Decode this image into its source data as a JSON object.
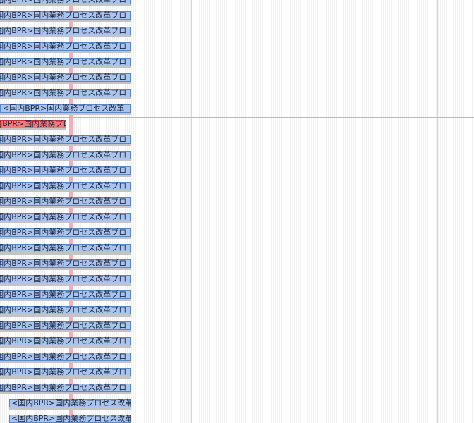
{
  "gantt": {
    "tasks": [
      {
        "label": "<国内BPR>国内業務プロセス改革プロ",
        "kind": "normal"
      },
      {
        "label": "<国内BPR>国内業務プロセス改革プロ",
        "kind": "normal"
      },
      {
        "label": "<国内BPR>国内業務プロセス改革プロ",
        "kind": "normal"
      },
      {
        "label": "<国内BPR>国内業務プロセス改革プロ",
        "kind": "normal"
      },
      {
        "label": "<国内BPR>国内業務プロセス改革プロ",
        "kind": "normal"
      },
      {
        "label": "<国内BPR>国内業務プロセス改革プロ",
        "kind": "normal"
      },
      {
        "label": "<国内BPR>国内業務プロセス改革プロ",
        "kind": "normal"
      },
      {
        "label": "<国内BPR>国内業務プロセス改革",
        "kind": "normal-short"
      },
      {
        "label": "<国内BPR>国内業務プロ",
        "kind": "red"
      },
      {
        "label": "<国内BPR>国内業務プロセス改革プロ",
        "kind": "normal"
      },
      {
        "label": "<国内BPR>国内業務プロセス改革プロ",
        "kind": "normal"
      },
      {
        "label": "<国内BPR>国内業務プロセス改革プロ",
        "kind": "normal"
      },
      {
        "label": "<国内BPR>国内業務プロセス改革プロ",
        "kind": "normal"
      },
      {
        "label": "<国内BPR>国内業務プロセス改革プロ",
        "kind": "normal"
      },
      {
        "label": "<国内BPR>国内業務プロセス改革プロ",
        "kind": "normal"
      },
      {
        "label": "<国内BPR>国内業務プロセス改革プロ",
        "kind": "normal"
      },
      {
        "label": "<国内BPR>国内業務プロセス改革プロ",
        "kind": "normal"
      },
      {
        "label": "<国内BPR>国内業務プロセス改革プロ",
        "kind": "normal"
      },
      {
        "label": "<国内BPR>国内業務プロセス改革プロ",
        "kind": "normal"
      },
      {
        "label": "<国内BPR>国内業務プロセス改革プロ",
        "kind": "normal"
      },
      {
        "label": "<国内BPR>国内業務プロセス改革プロ",
        "kind": "normal"
      },
      {
        "label": "<国内BPR>国内業務プロセス改革プロ",
        "kind": "normal"
      },
      {
        "label": "<国内BPR>国内業務プロセス改革プロ",
        "kind": "normal"
      },
      {
        "label": "<国内BPR>国内業務プロセス改革プロ",
        "kind": "normal"
      },
      {
        "label": "<国内BPR>国内業務プロセス改革プロ",
        "kind": "normal"
      },
      {
        "label": "<国内BPR>国内業務プロセス改革プロ",
        "kind": "normal"
      },
      {
        "label": "<国内BPR>国内業務プロセス改革",
        "kind": "late"
      },
      {
        "label": "<国内BPR>国内業務プロセス改革",
        "kind": "late"
      }
    ]
  },
  "colors": {
    "bar": "#a9c5ee",
    "bar_border": "#5b88c8",
    "bar_overdue": "#f27a7a",
    "today_line": "#f6aeb6"
  }
}
